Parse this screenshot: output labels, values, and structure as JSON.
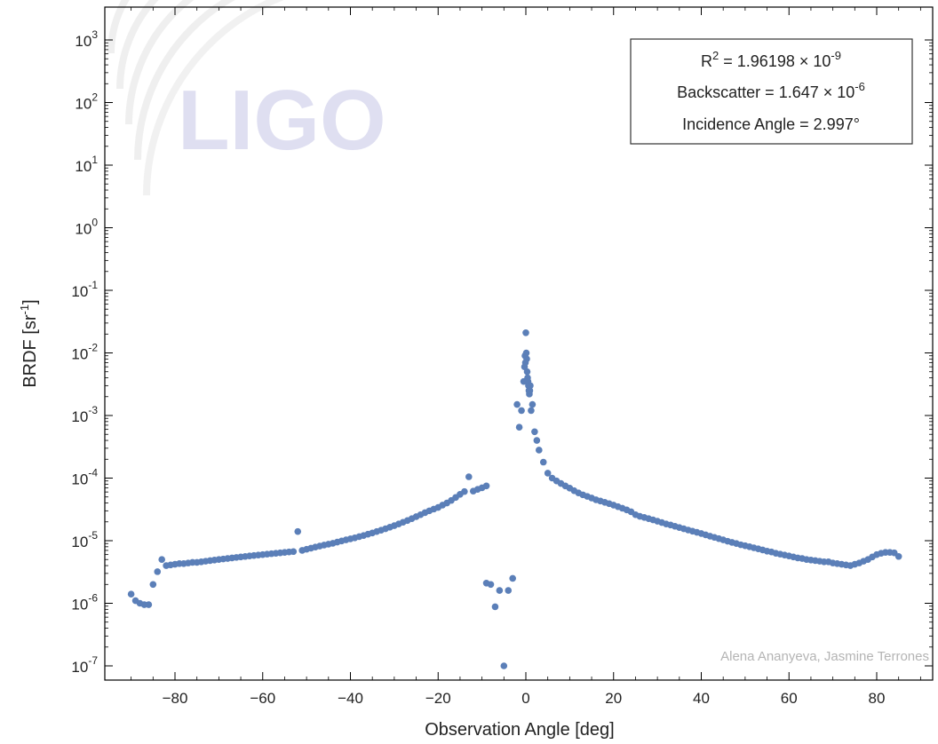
{
  "chart_data": {
    "type": "scatter",
    "title": "",
    "xlabel": "Observation Angle [deg]",
    "ylabel": "BRDF [sr",
    "ylabel_sup": "-1",
    "ylabel_end": "]",
    "xlim": [
      -92,
      92
    ],
    "ylim": [
      1e-07,
      3000
    ],
    "yscale": "log",
    "grid": false,
    "x_ticks": [
      -80,
      -60,
      -40,
      -20,
      0,
      20,
      40,
      60,
      80
    ],
    "x_tick_labels": [
      "−80",
      "−60",
      "−40",
      "−20",
      "0",
      "20",
      "40",
      "60",
      "80"
    ],
    "y_ticks": [
      {
        "value": 1000,
        "base": "10",
        "exp": "3"
      },
      {
        "value": 100,
        "base": "10",
        "exp": "2"
      },
      {
        "value": 10,
        "base": "10",
        "exp": "1"
      },
      {
        "value": 1,
        "base": "10",
        "exp": "0"
      },
      {
        "value": 0.1,
        "base": "10",
        "exp": "-1"
      },
      {
        "value": 0.01,
        "base": "10",
        "exp": "-2"
      },
      {
        "value": 0.001,
        "base": "10",
        "exp": "-3"
      },
      {
        "value": 0.0001,
        "base": "10",
        "exp": "-4"
      },
      {
        "value": 1e-05,
        "base": "10",
        "exp": "-5"
      },
      {
        "value": 1e-06,
        "base": "10",
        "exp": "-6"
      },
      {
        "value": 1e-07,
        "base": "10",
        "exp": "-7"
      }
    ],
    "point_color": "#5b7fb8",
    "legend_placement": "top-right",
    "legend": {
      "r2_prefix": "R",
      "r2_sup": "2",
      "r2_text": " = 1.96198 × 10",
      "r2_exp": "-9",
      "backscatter_text": "Backscatter  = 1.647 × 10",
      "backscatter_exp": "-6",
      "incidence_text": "Incidence Angle = 2.997°"
    },
    "annotation": "Alena Ananyeva, Jasmine Terrones",
    "watermark": "LIGO",
    "series": [
      {
        "x": [
          -90,
          -89,
          -88,
          -87,
          -86,
          -85,
          -84,
          -83,
          -82,
          -81,
          -80,
          -79,
          -78,
          -77,
          -76,
          -75,
          -74,
          -73,
          -72,
          -71,
          -70,
          -69,
          -68,
          -67,
          -66,
          -65,
          -64,
          -63,
          -62,
          -61,
          -60,
          -59,
          -58,
          -57,
          -56,
          -55,
          -54,
          -53,
          -52,
          -51,
          -50,
          -49,
          -48,
          -47,
          -46,
          -45,
          -44,
          -43,
          -42,
          -41,
          -40,
          -39,
          -38,
          -37,
          -36,
          -35,
          -34,
          -33,
          -32,
          -31,
          -30,
          -29,
          -28,
          -27,
          -26,
          -25,
          -24,
          -23,
          -22,
          -21,
          -20,
          -19,
          -18,
          -17,
          -16,
          -15,
          -14,
          -13,
          -12,
          -11,
          -10,
          -9,
          -9,
          -8,
          -7,
          -6,
          -5,
          -4,
          -3,
          -2,
          -1.5,
          -1,
          -0.5,
          -0.3,
          -0.2,
          -0.1,
          0,
          0.1,
          0.2,
          0.3,
          0.4,
          0.5,
          0.6,
          0.7,
          0.8,
          0.9,
          1,
          1.2,
          1.5,
          2,
          2.5,
          3,
          4,
          5,
          6,
          7,
          8,
          9,
          10,
          11,
          12,
          13,
          14,
          15,
          16,
          17,
          18,
          19,
          20,
          21,
          22,
          23,
          24,
          25,
          26,
          27,
          28,
          29,
          30,
          31,
          32,
          33,
          34,
          35,
          36,
          37,
          38,
          39,
          40,
          41,
          42,
          43,
          44,
          45,
          46,
          47,
          48,
          49,
          50,
          51,
          52,
          53,
          54,
          55,
          56,
          57,
          58,
          59,
          60,
          61,
          62,
          63,
          64,
          65,
          66,
          67,
          68,
          69,
          70,
          71,
          72,
          73,
          74,
          75,
          76,
          77,
          78,
          79,
          80,
          81,
          82,
          83,
          84,
          85
        ],
        "y": [
          1.4e-06,
          1.1e-06,
          1e-06,
          9.5e-07,
          9.5e-07,
          2e-06,
          3.2e-06,
          5e-06,
          4e-06,
          4.1e-06,
          4.2e-06,
          4.3e-06,
          4.3e-06,
          4.4e-06,
          4.5e-06,
          4.5e-06,
          4.6e-06,
          4.7e-06,
          4.8e-06,
          4.9e-06,
          5e-06,
          5.1e-06,
          5.2e-06,
          5.3e-06,
          5.4e-06,
          5.5e-06,
          5.6e-06,
          5.7e-06,
          5.8e-06,
          5.9e-06,
          6e-06,
          6.1e-06,
          6.2e-06,
          6.3e-06,
          6.4e-06,
          6.5e-06,
          6.6e-06,
          6.7e-06,
          1.4e-05,
          7e-06,
          7.3e-06,
          7.6e-06,
          7.9e-06,
          8.2e-06,
          8.5e-06,
          8.8e-06,
          9.1e-06,
          9.5e-06,
          9.9e-06,
          1.03e-05,
          1.07e-05,
          1.11e-05,
          1.16e-05,
          1.21e-05,
          1.27e-05,
          1.33e-05,
          1.4e-05,
          1.47e-05,
          1.55e-05,
          1.64e-05,
          1.74e-05,
          1.85e-05,
          1.97e-05,
          2.1e-05,
          2.25e-05,
          2.42e-05,
          2.6e-05,
          2.8e-05,
          3e-05,
          3.2e-05,
          3.4e-05,
          3.7e-05,
          4e-05,
          4.4e-05,
          4.9e-05,
          5.5e-05,
          6.1e-05,
          0.000105,
          6.2e-05,
          6.6e-05,
          7e-05,
          7.5e-05,
          2.1e-06,
          2e-06,
          8.8e-07,
          1.6e-06,
          1e-07,
          1.6e-06,
          2.5e-06,
          0.0015,
          0.00065,
          0.0012,
          0.0035,
          0.006,
          0.009,
          0.007,
          0.021,
          0.01,
          0.008,
          0.005,
          0.004,
          0.0035,
          0.003,
          0.0025,
          0.0022,
          0.0025,
          0.003,
          0.0012,
          0.0015,
          0.00055,
          0.0004,
          0.00028,
          0.00018,
          0.00012,
          0.0001,
          9e-05,
          8.2e-05,
          7.5e-05,
          6.9e-05,
          6.3e-05,
          5.8e-05,
          5.4e-05,
          5.1e-05,
          4.8e-05,
          4.5e-05,
          4.3e-05,
          4.1e-05,
          3.9e-05,
          3.7e-05,
          3.5e-05,
          3.3e-05,
          3.1e-05,
          2.9e-05,
          2.6e-05,
          2.45e-05,
          2.35e-05,
          2.25e-05,
          2.15e-05,
          2.05e-05,
          1.95e-05,
          1.85e-05,
          1.78e-05,
          1.7e-05,
          1.62e-05,
          1.55e-05,
          1.48e-05,
          1.42e-05,
          1.36e-05,
          1.3e-05,
          1.24e-05,
          1.18e-05,
          1.13e-05,
          1.08e-05,
          1.03e-05,
          9.8e-06,
          9.4e-06,
          9e-06,
          8.6e-06,
          8.3e-06,
          8e-06,
          7.7e-06,
          7.4e-06,
          7.1e-06,
          6.8e-06,
          6.6e-06,
          6.3e-06,
          6.1e-06,
          5.9e-06,
          5.7e-06,
          5.5e-06,
          5.3e-06,
          5.2e-06,
          5e-06,
          4.9e-06,
          4.8e-06,
          4.7e-06,
          4.6e-06,
          4.6e-06,
          4.4e-06,
          4.3e-06,
          4.2e-06,
          4.1e-06,
          4e-06,
          4.2e-06,
          4.4e-06,
          4.7e-06,
          5e-06,
          5.5e-06,
          6e-06,
          6.3e-06,
          6.5e-06,
          6.5e-06,
          6.4e-06,
          5.6e-06
        ]
      }
    ]
  }
}
